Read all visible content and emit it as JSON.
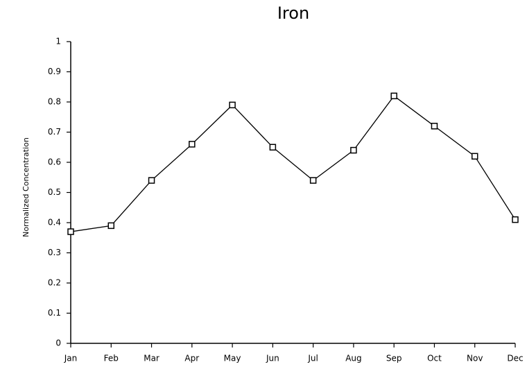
{
  "chart_data": {
    "type": "line",
    "title": "Iron",
    "ylabel": "Normalized Concentration",
    "categories": [
      "Jan",
      "Feb",
      "Mar",
      "Apr",
      "May",
      "Jun",
      "Jul",
      "Aug",
      "Sep",
      "Oct",
      "Nov",
      "Dec"
    ],
    "series": [
      {
        "name": "Iron",
        "color": "#000000",
        "values": [
          0.37,
          0.39,
          0.54,
          0.66,
          0.79,
          0.65,
          0.54,
          0.64,
          0.82,
          0.72,
          0.62,
          0.41
        ]
      }
    ],
    "ylim": [
      0,
      1
    ],
    "yticks": [
      0,
      0.1,
      0.2,
      0.3,
      0.4,
      0.5,
      0.6,
      0.7,
      0.8,
      0.9,
      1
    ],
    "grid": false,
    "marker": "square"
  }
}
